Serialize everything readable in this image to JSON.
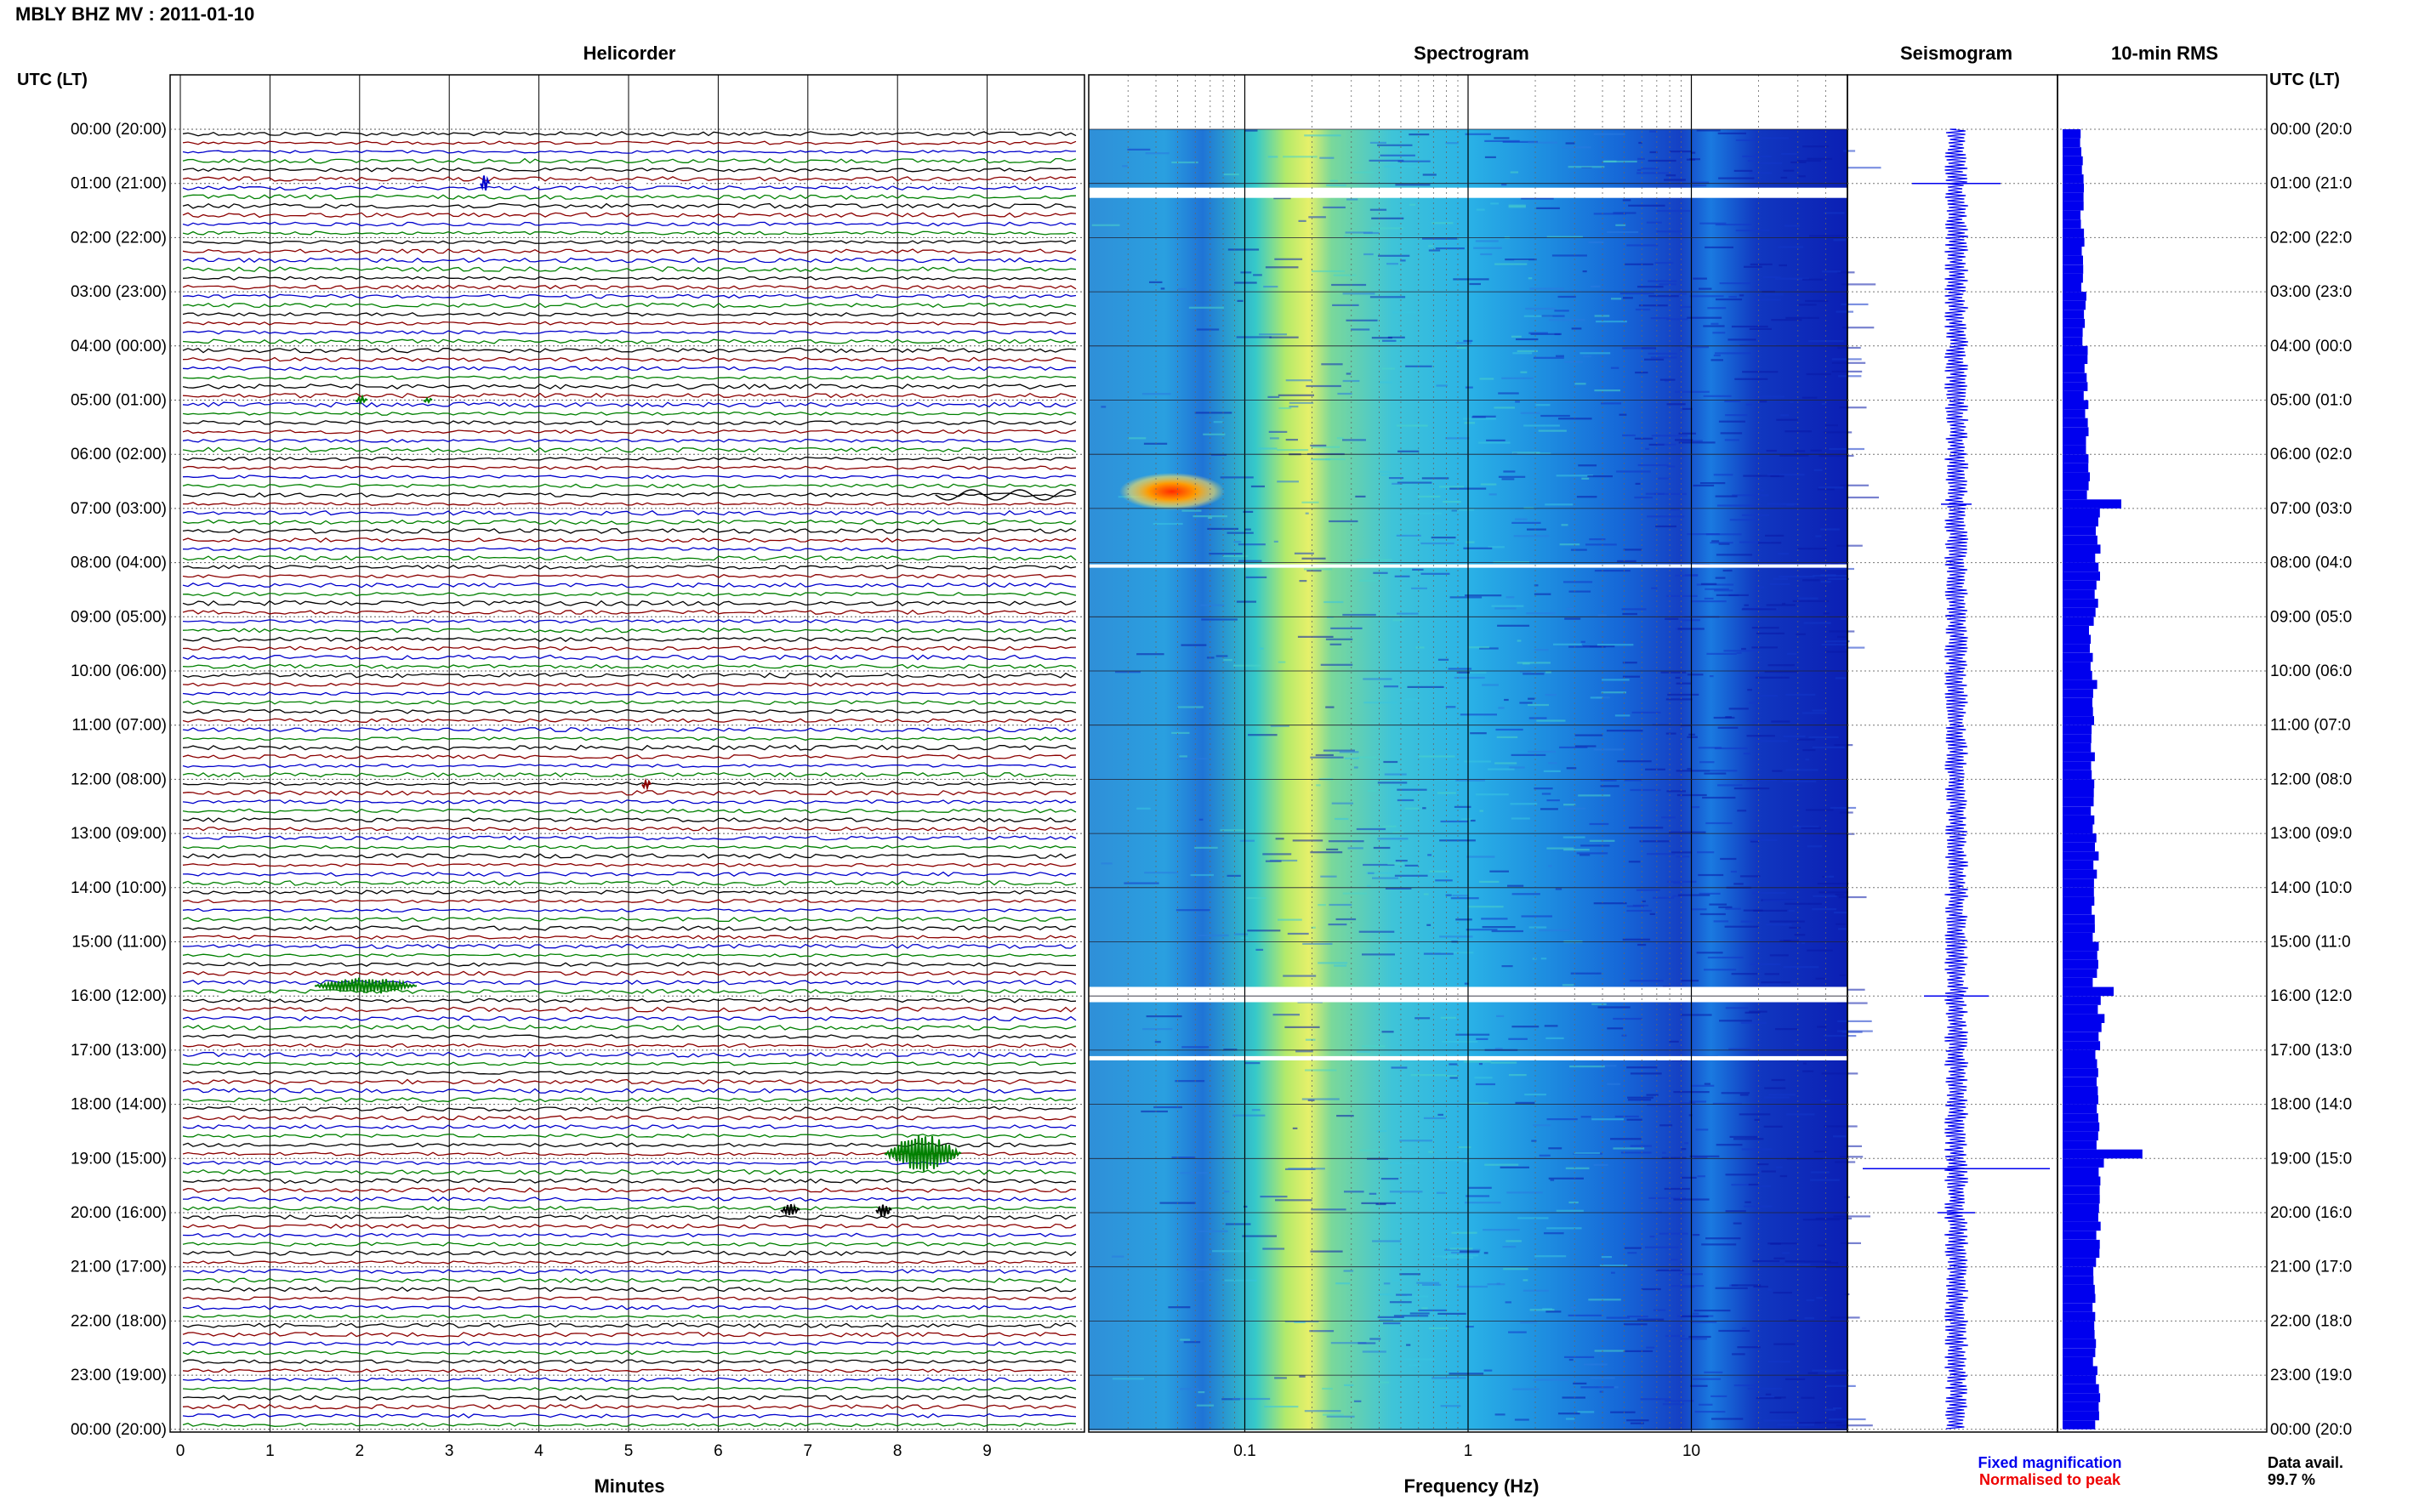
{
  "page_title": "MBLY BHZ MV : 2011-01-10",
  "panels": {
    "helicorder": "Helicorder",
    "spectrogram": "Spectrogram",
    "seismogram": "Seismogram",
    "rms": "10-min RMS"
  },
  "axis_headers": {
    "left": "UTC (LT)",
    "right": "UTC (LT)"
  },
  "time_labels": [
    "00:00 (20:00)",
    "01:00 (21:00)",
    "02:00 (22:00)",
    "03:00 (23:00)",
    "04:00 (00:00)",
    "05:00 (01:00)",
    "06:00 (02:00)",
    "07:00 (03:00)",
    "08:00 (04:00)",
    "09:00 (05:00)",
    "10:00 (06:00)",
    "11:00 (07:00)",
    "12:00 (08:00)",
    "13:00 (09:00)",
    "14:00 (10:00)",
    "15:00 (11:00)",
    "16:00 (12:00)",
    "17:00 (13:00)",
    "18:00 (14:00)",
    "19:00 (15:00)",
    "20:00 (16:00)",
    "21:00 (17:00)",
    "22:00 (18:00)",
    "23:00 (19:00)",
    "00:00 (20:00)"
  ],
  "right_time_labels": [
    "00:00 (20:0",
    "01:00 (21:0",
    "02:00 (22:0",
    "03:00 (23:0",
    "04:00 (00:0",
    "05:00 (01:0",
    "06:00 (02:0",
    "07:00 (03:0",
    "08:00 (04:0",
    "09:00 (05:0",
    "10:00 (06:0",
    "11:00 (07:0",
    "12:00 (08:0",
    "13:00 (09:0",
    "14:00 (10:0",
    "15:00 (11:0",
    "16:00 (12:0",
    "17:00 (13:0",
    "18:00 (14:0",
    "19:00 (15:0",
    "20:00 (16:0",
    "21:00 (17:0",
    "22:00 (18:0",
    "23:00 (19:0",
    "00:00 (20:0"
  ],
  "helicorder_minute_ticks": [
    "0",
    "1",
    "2",
    "3",
    "4",
    "5",
    "6",
    "7",
    "8",
    "9"
  ],
  "helicorder_xlabel": "Minutes",
  "spectrogram_freq_ticks": [
    "0.1",
    "1",
    "10"
  ],
  "spectrogram_xlabel": "Frequency (Hz)",
  "legend": {
    "fixed": "Fixed magnification",
    "normalised": "Normalised to peak",
    "fixed_color": "#0000ee",
    "normalised_color": "#ee0000"
  },
  "availability": {
    "label": "Data avail.",
    "value": "99.7 %"
  },
  "colors": {
    "trace_cycle": [
      "#000000",
      "#8b0000",
      "#0000cc",
      "#008000"
    ],
    "rms_bar": "#0000ee",
    "seismogram": "#0000ee"
  },
  "chart_data": [
    {
      "type": "heatmap",
      "name": "helicorder",
      "title": "Helicorder",
      "xlabel": "Minutes",
      "xlim": [
        0,
        10
      ],
      "ylabel": "UTC (LT)",
      "rows_per_hour": 6,
      "rows": 144,
      "trace_color_cycle": [
        "black",
        "darkred",
        "blue",
        "green"
      ],
      "events": [
        {
          "time": "00:50",
          "minute": 3.4,
          "color": "blue"
        },
        {
          "time": "04:50",
          "minute": 2.0,
          "color": "green"
        },
        {
          "time": "06:40",
          "minute": 9.0,
          "color": "black"
        },
        {
          "time": "11:50",
          "minute": 5.2,
          "color": "darkred"
        },
        {
          "time": "15:50",
          "minute": 1.8,
          "color": "green"
        },
        {
          "time": "18:50",
          "minute": 8.1,
          "color": "green"
        },
        {
          "time": "19:50",
          "minute": 6.8,
          "color": "black"
        },
        {
          "time": "19:50",
          "minute": 7.9,
          "color": "black"
        }
      ],
      "gaps": [
        "01:00",
        "16:00"
      ]
    },
    {
      "type": "heatmap",
      "name": "spectrogram",
      "title": "Spectrogram",
      "xlabel": "Frequency (Hz)",
      "xscale": "log",
      "xlim": [
        0.02,
        50
      ],
      "x_ticks": [
        "0.1",
        "1",
        "10"
      ],
      "dominant_band_hz": [
        0.15,
        0.3
      ],
      "hot_spot": {
        "time": "06:55",
        "freq_hz": 0.05
      },
      "gaps": [
        "01:00",
        "08:00",
        "16:00",
        "17:00"
      ]
    },
    {
      "type": "line",
      "name": "seismogram",
      "title": "Seismogram",
      "spikes": [
        "01:00",
        "16:00",
        "19:00",
        "20:00"
      ]
    },
    {
      "type": "bar",
      "name": "10-min RMS",
      "title": "10-min RMS",
      "orientation": "horizontal",
      "bar_interval_min": 10,
      "hourly_relative": [
        0.3,
        0.31,
        0.32,
        0.34,
        0.36,
        0.38,
        0.4,
        0.55,
        0.55,
        0.45,
        0.5,
        0.46,
        0.48,
        0.52,
        0.5,
        0.52,
        0.6,
        0.52,
        0.54,
        0.6,
        0.56,
        0.52,
        0.52,
        0.54
      ],
      "peaks": [
        {
          "time": "06:50",
          "relative": 0.92
        },
        {
          "time": "15:50",
          "relative": 0.8
        },
        {
          "time": "18:50",
          "relative": 1.25
        }
      ]
    }
  ]
}
